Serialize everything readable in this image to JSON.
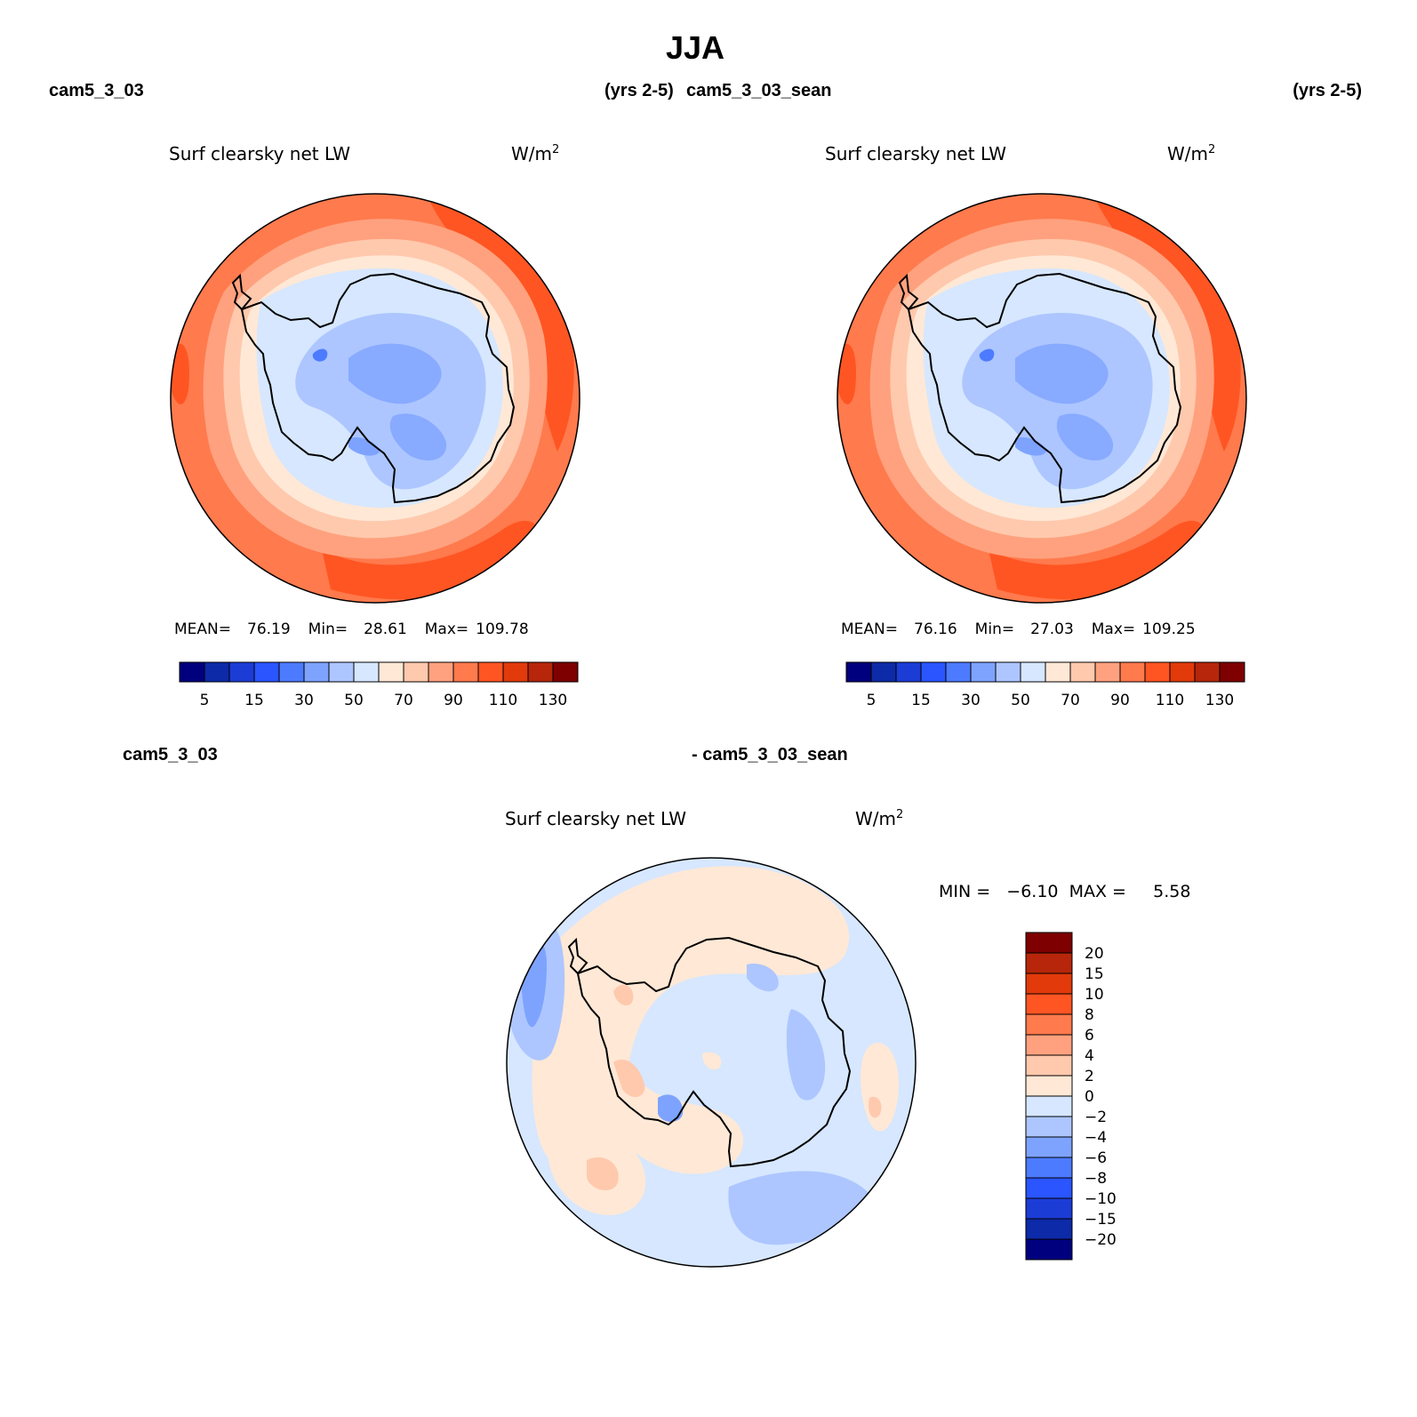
{
  "title": "JJA",
  "panels": [
    {
      "case_name": "cam5_3_03",
      "years": "(yrs 2-5)",
      "variable": "Surf clearsky net LW",
      "units": "W/m",
      "units_sup": "2",
      "stats": {
        "mean_label": "MEAN=",
        "mean": "76.19",
        "min_label": "Min=",
        "min": "28.61",
        "max_label": "Max=",
        "max": "109.78"
      },
      "colorbar": {
        "colors": [
          "#00007f",
          "#0d2aa8",
          "#1c3cd6",
          "#2a55ff",
          "#4d7bff",
          "#7ea3ff",
          "#adc6ff",
          "#d6e7ff",
          "#ffe8d6",
          "#ffc9ad",
          "#ffa17e",
          "#ff7a4d",
          "#ff5522",
          "#e23a0a",
          "#b7260a",
          "#7f0000"
        ],
        "tick_labels": [
          "5",
          "15",
          "30",
          "50",
          "70",
          "90",
          "110",
          "130"
        ]
      }
    },
    {
      "case_name": "cam5_3_03_sean",
      "years": "(yrs 2-5)",
      "variable": "Surf clearsky net LW",
      "units": "W/m",
      "units_sup": "2",
      "stats": {
        "mean_label": "MEAN=",
        "mean": "76.16",
        "min_label": "Min=",
        "min": "27.03",
        "max_label": "Max=",
        "max": "109.25"
      },
      "colorbar": {
        "colors": [
          "#00007f",
          "#0d2aa8",
          "#1c3cd6",
          "#2a55ff",
          "#4d7bff",
          "#7ea3ff",
          "#adc6ff",
          "#d6e7ff",
          "#ffe8d6",
          "#ffc9ad",
          "#ffa17e",
          "#ff7a4d",
          "#ff5522",
          "#e23a0a",
          "#b7260a",
          "#7f0000"
        ],
        "tick_labels": [
          "5",
          "15",
          "30",
          "50",
          "70",
          "90",
          "110",
          "130"
        ]
      }
    }
  ],
  "difference": {
    "left_label": "cam5_3_03",
    "right_label": "- cam5_3_03_sean",
    "variable": "Surf clearsky net LW",
    "units": "W/m",
    "units_sup": "2",
    "stats_text": "MIN =   −6.10  MAX =     5.58",
    "colorbar": {
      "colors_top_to_bottom": [
        "#7f0000",
        "#b7260a",
        "#e23a0a",
        "#ff5522",
        "#ff7a4d",
        "#ffa17e",
        "#ffc9ad",
        "#ffe8d6",
        "#d6e7ff",
        "#adc6ff",
        "#7ea3ff",
        "#4d7bff",
        "#2a55ff",
        "#1c3cd6",
        "#0d2aa8",
        "#00007f"
      ],
      "tick_labels": [
        "20",
        "15",
        "10",
        "8",
        "6",
        "4",
        "2",
        "0",
        "−2",
        "−4",
        "−6",
        "−8",
        "−10",
        "−15",
        "−20"
      ]
    }
  }
}
